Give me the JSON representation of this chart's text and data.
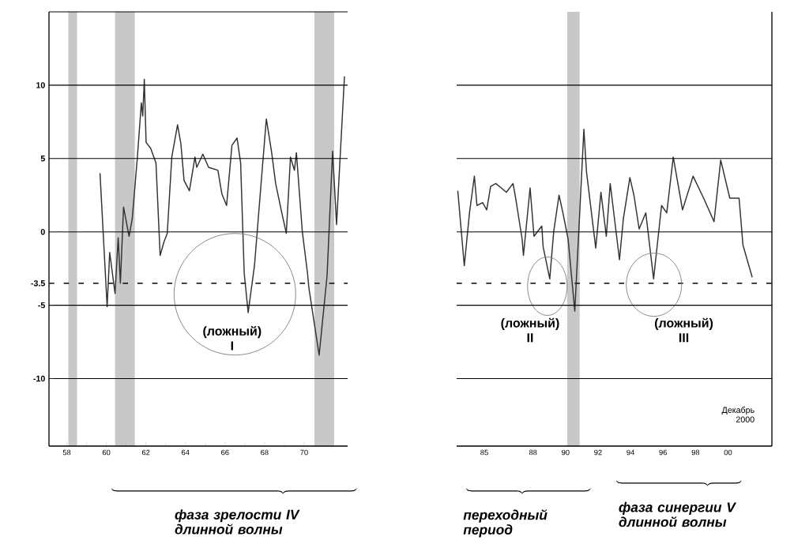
{
  "chart_data": [
    {
      "type": "line",
      "color": "#333333",
      "marker": "none",
      "grid": "y",
      "x": [
        59.68,
        60.04,
        60.17,
        60.44,
        60.6,
        60.71,
        60.87,
        61.15,
        61.31,
        61.57,
        61.77,
        61.84,
        61.92,
        62.01,
        62.24,
        62.51,
        62.72,
        62.91,
        63.08,
        63.31,
        63.6,
        63.77,
        63.93,
        64.2,
        64.48,
        64.57,
        64.88,
        65.17,
        65.64,
        65.84,
        66.08,
        66.35,
        66.61,
        66.79,
        66.97,
        67.17,
        67.49,
        67.89,
        68.09,
        68.36,
        68.56,
        68.84,
        69.1,
        69.31,
        69.51,
        69.61,
        69.91,
        70.17,
        70.24,
        70.76,
        71.16,
        71.44,
        71.64,
        72.04
      ],
      "values": [
        4.0,
        -5.1,
        -1.4,
        -4.2,
        -0.4,
        -3.5,
        1.7,
        -0.3,
        0.9,
        5.1,
        8.8,
        7.9,
        10.4,
        6.1,
        5.7,
        4.7,
        -1.6,
        -0.7,
        -0.1,
        5.1,
        7.3,
        6.0,
        3.5,
        2.8,
        5.1,
        4.4,
        5.3,
        4.4,
        4.2,
        2.6,
        1.8,
        5.9,
        6.4,
        4.7,
        -2.8,
        -5.5,
        -2.3,
        4.4,
        7.7,
        5.4,
        3.3,
        1.5,
        -0.1,
        5.1,
        4.2,
        5.4,
        0.0,
        -2.8,
        -3.8,
        -8.4,
        -3.0,
        5.5,
        0.5,
        10.6
      ],
      "xlim": [
        57.1,
        72.2
      ],
      "ylim": [
        -14.6,
        15
      ],
      "xticks": [
        58,
        60,
        62,
        64,
        66,
        68,
        70
      ],
      "yticks": [
        -10,
        -5,
        {
          "value": -3.5,
          "label": "-3.5"
        },
        0,
        5,
        10,
        {
          "value": 15,
          "label": null
        }
      ],
      "bands": [
        {
          "axis": "x",
          "from": 58.08,
          "to": 58.52,
          "color": "#c8c8c8"
        },
        {
          "axis": "x",
          "from": 60.44,
          "to": 61.44,
          "color": "#c8c8c8"
        },
        {
          "axis": "x",
          "from": 70.52,
          "to": 71.52,
          "color": "#c8c8c8"
        }
      ],
      "ref_lines": [
        {
          "axis": "y",
          "value": -3.5,
          "line_style": "dashed"
        }
      ],
      "annotations": [
        {
          "text": "(ложный) I",
          "x": 67.17,
          "y": -5.5
        },
        "фаза зрелости IV длинной волны"
      ]
    },
    {
      "type": "line",
      "color": "#333333",
      "marker": "none",
      "grid": "y",
      "tick_labels": "x",
      "x": [
        1983.37,
        1983.77,
        1984.09,
        1984.39,
        1984.55,
        1984.9,
        1985.15,
        1985.39,
        1985.71,
        1986.04,
        1986.36,
        1986.77,
        1986.93,
        1987.33,
        1987.41,
        1987.82,
        1988.06,
        1988.54,
        1988.62,
        1989.03,
        1989.27,
        1989.6,
        1989.84,
        1990.16,
        1990.57,
        1991.13,
        1991.29,
        1991.86,
        1992.18,
        1992.51,
        1992.75,
        1993.32,
        1993.56,
        1993.96,
        1994.21,
        1994.53,
        1994.94,
        1995.42,
        1995.91,
        1996.23,
        1996.63,
        1997.2,
        1997.85,
        1998.5,
        1999.14,
        1999.55,
        2000.11,
        2000.68,
        2000.92,
        2001.49
      ],
      "values": [
        2.8,
        -2.3,
        1.3,
        3.8,
        1.8,
        2.0,
        1.5,
        3.1,
        3.3,
        3.0,
        2.7,
        3.3,
        2.3,
        -0.5,
        -1.6,
        3.0,
        -0.3,
        0.4,
        -1.0,
        -3.2,
        0.0,
        2.5,
        1.3,
        -0.5,
        -5.4,
        7.0,
        4.1,
        -1.1,
        2.7,
        -0.3,
        3.3,
        -1.9,
        0.9,
        3.7,
        2.5,
        0.2,
        1.3,
        -3.2,
        1.8,
        1.3,
        5.1,
        1.5,
        3.8,
        2.3,
        0.7,
        4.9,
        2.3,
        2.3,
        -0.9,
        -3.1
      ],
      "xlim": [
        1983.3,
        2002.7
      ],
      "ylim": [
        -14.6,
        15
      ],
      "xticks": [
        {
          "value": 1985,
          "label": "85"
        },
        {
          "value": 1988,
          "label": "88"
        },
        {
          "value": 1990,
          "label": "90"
        },
        {
          "value": 1992,
          "label": "92"
        },
        {
          "value": 1994,
          "label": "94"
        },
        {
          "value": 1996,
          "label": "96"
        },
        {
          "value": 1998,
          "label": "98"
        },
        {
          "value": 2000,
          "label": "00"
        }
      ],
      "yticks": [
        -10,
        -5,
        0,
        5,
        10
      ],
      "bands": [
        {
          "axis": "x",
          "from": 1990.1,
          "to": 1990.87,
          "color": "#c8c8c8"
        }
      ],
      "ref_lines": [
        {
          "axis": "y",
          "value": -3.5,
          "line_style": "dashed"
        }
      ],
      "annotations": [
        "(ложный) II",
        "(ложный) III",
        "Декабрь 2000",
        "переходный период",
        "фаза синергии V длинной волны"
      ]
    }
  ]
}
